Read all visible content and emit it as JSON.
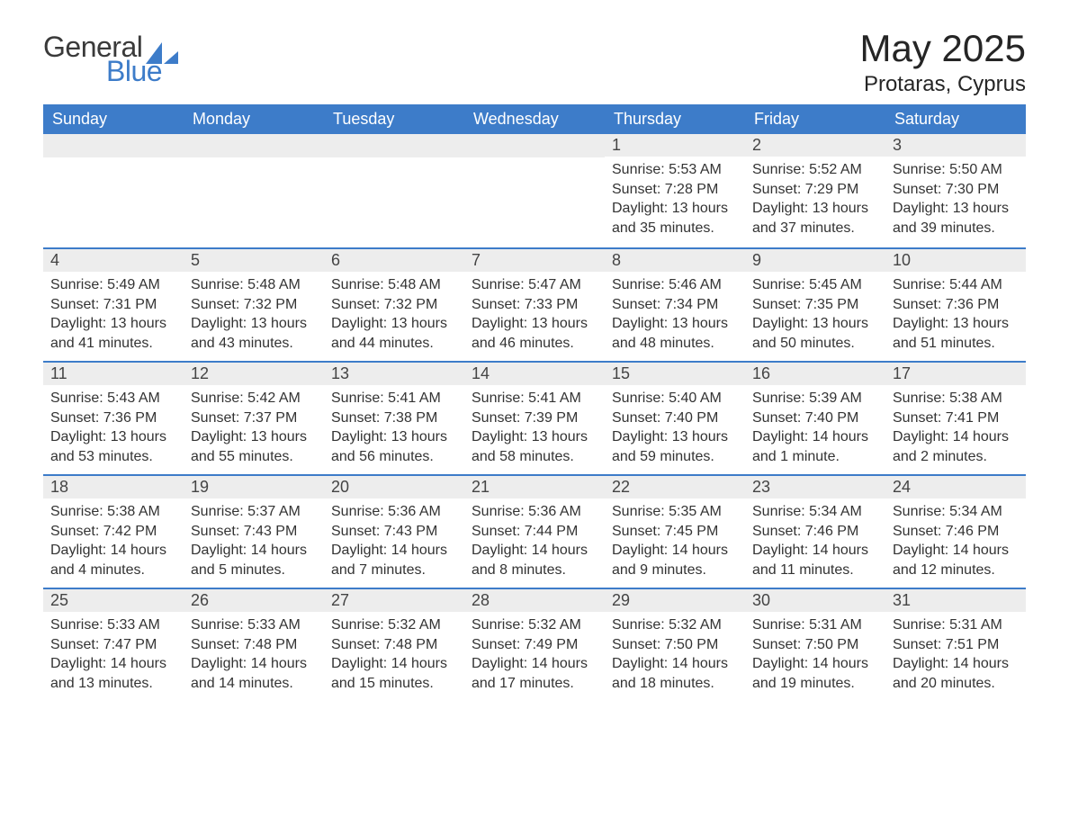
{
  "logo": {
    "text1": "General",
    "text2": "Blue",
    "accent_color": "#3d7cc9"
  },
  "title": "May 2025",
  "location": "Protaras, Cyprus",
  "colors": {
    "header_bg": "#3d7cc9",
    "header_text": "#ffffff",
    "daynum_bg": "#ededed",
    "row_border": "#3d7cc9",
    "body_text": "#333333"
  },
  "weekdays": [
    "Sunday",
    "Monday",
    "Tuesday",
    "Wednesday",
    "Thursday",
    "Friday",
    "Saturday"
  ],
  "weeks": [
    [
      null,
      null,
      null,
      null,
      {
        "n": "1",
        "sr": "5:53 AM",
        "ss": "7:28 PM",
        "dl": "13 hours and 35 minutes."
      },
      {
        "n": "2",
        "sr": "5:52 AM",
        "ss": "7:29 PM",
        "dl": "13 hours and 37 minutes."
      },
      {
        "n": "3",
        "sr": "5:50 AM",
        "ss": "7:30 PM",
        "dl": "13 hours and 39 minutes."
      }
    ],
    [
      {
        "n": "4",
        "sr": "5:49 AM",
        "ss": "7:31 PM",
        "dl": "13 hours and 41 minutes."
      },
      {
        "n": "5",
        "sr": "5:48 AM",
        "ss": "7:32 PM",
        "dl": "13 hours and 43 minutes."
      },
      {
        "n": "6",
        "sr": "5:48 AM",
        "ss": "7:32 PM",
        "dl": "13 hours and 44 minutes."
      },
      {
        "n": "7",
        "sr": "5:47 AM",
        "ss": "7:33 PM",
        "dl": "13 hours and 46 minutes."
      },
      {
        "n": "8",
        "sr": "5:46 AM",
        "ss": "7:34 PM",
        "dl": "13 hours and 48 minutes."
      },
      {
        "n": "9",
        "sr": "5:45 AM",
        "ss": "7:35 PM",
        "dl": "13 hours and 50 minutes."
      },
      {
        "n": "10",
        "sr": "5:44 AM",
        "ss": "7:36 PM",
        "dl": "13 hours and 51 minutes."
      }
    ],
    [
      {
        "n": "11",
        "sr": "5:43 AM",
        "ss": "7:36 PM",
        "dl": "13 hours and 53 minutes."
      },
      {
        "n": "12",
        "sr": "5:42 AM",
        "ss": "7:37 PM",
        "dl": "13 hours and 55 minutes."
      },
      {
        "n": "13",
        "sr": "5:41 AM",
        "ss": "7:38 PM",
        "dl": "13 hours and 56 minutes."
      },
      {
        "n": "14",
        "sr": "5:41 AM",
        "ss": "7:39 PM",
        "dl": "13 hours and 58 minutes."
      },
      {
        "n": "15",
        "sr": "5:40 AM",
        "ss": "7:40 PM",
        "dl": "13 hours and 59 minutes."
      },
      {
        "n": "16",
        "sr": "5:39 AM",
        "ss": "7:40 PM",
        "dl": "14 hours and 1 minute."
      },
      {
        "n": "17",
        "sr": "5:38 AM",
        "ss": "7:41 PM",
        "dl": "14 hours and 2 minutes."
      }
    ],
    [
      {
        "n": "18",
        "sr": "5:38 AM",
        "ss": "7:42 PM",
        "dl": "14 hours and 4 minutes."
      },
      {
        "n": "19",
        "sr": "5:37 AM",
        "ss": "7:43 PM",
        "dl": "14 hours and 5 minutes."
      },
      {
        "n": "20",
        "sr": "5:36 AM",
        "ss": "7:43 PM",
        "dl": "14 hours and 7 minutes."
      },
      {
        "n": "21",
        "sr": "5:36 AM",
        "ss": "7:44 PM",
        "dl": "14 hours and 8 minutes."
      },
      {
        "n": "22",
        "sr": "5:35 AM",
        "ss": "7:45 PM",
        "dl": "14 hours and 9 minutes."
      },
      {
        "n": "23",
        "sr": "5:34 AM",
        "ss": "7:46 PM",
        "dl": "14 hours and 11 minutes."
      },
      {
        "n": "24",
        "sr": "5:34 AM",
        "ss": "7:46 PM",
        "dl": "14 hours and 12 minutes."
      }
    ],
    [
      {
        "n": "25",
        "sr": "5:33 AM",
        "ss": "7:47 PM",
        "dl": "14 hours and 13 minutes."
      },
      {
        "n": "26",
        "sr": "5:33 AM",
        "ss": "7:48 PM",
        "dl": "14 hours and 14 minutes."
      },
      {
        "n": "27",
        "sr": "5:32 AM",
        "ss": "7:48 PM",
        "dl": "14 hours and 15 minutes."
      },
      {
        "n": "28",
        "sr": "5:32 AM",
        "ss": "7:49 PM",
        "dl": "14 hours and 17 minutes."
      },
      {
        "n": "29",
        "sr": "5:32 AM",
        "ss": "7:50 PM",
        "dl": "14 hours and 18 minutes."
      },
      {
        "n": "30",
        "sr": "5:31 AM",
        "ss": "7:50 PM",
        "dl": "14 hours and 19 minutes."
      },
      {
        "n": "31",
        "sr": "5:31 AM",
        "ss": "7:51 PM",
        "dl": "14 hours and 20 minutes."
      }
    ]
  ],
  "labels": {
    "sunrise": "Sunrise: ",
    "sunset": "Sunset: ",
    "daylight": "Daylight: "
  }
}
